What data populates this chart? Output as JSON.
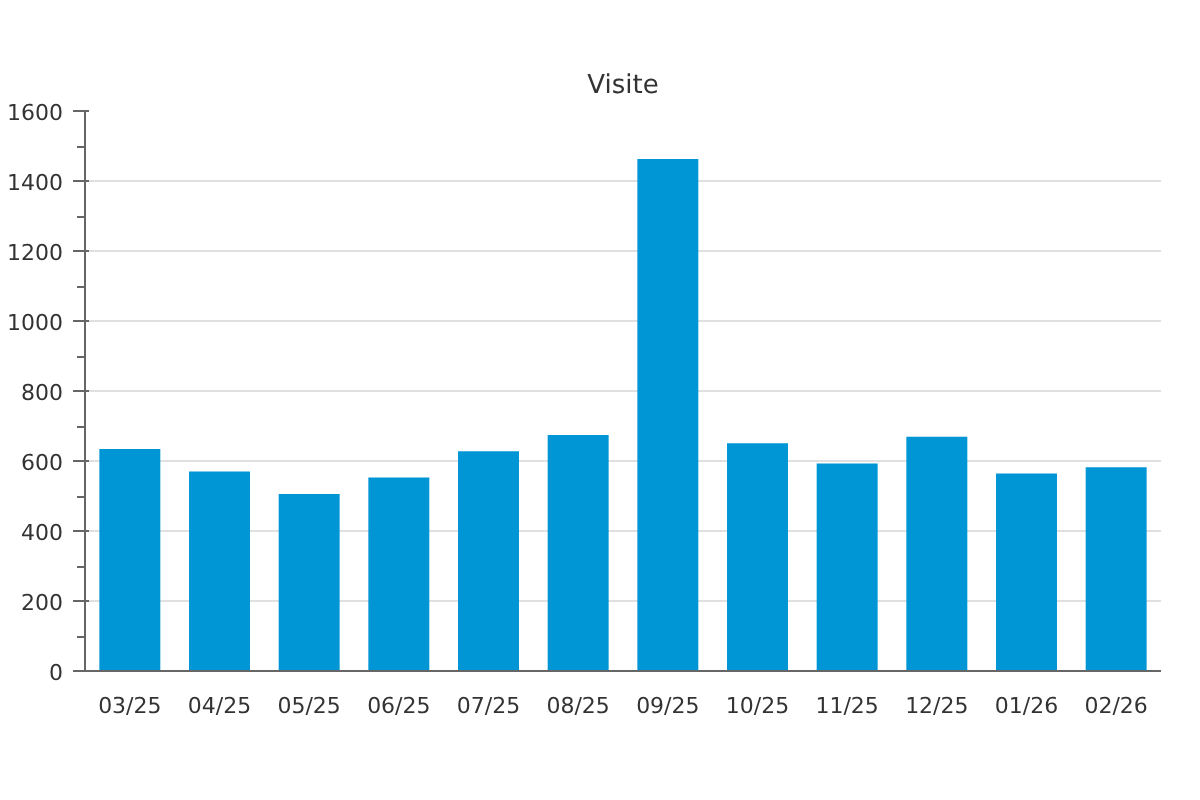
{
  "chart_data": {
    "type": "bar",
    "title": "Visite",
    "categories": [
      "03/25",
      "04/25",
      "05/25",
      "06/25",
      "07/25",
      "08/25",
      "09/25",
      "10/25",
      "11/25",
      "12/25",
      "01/26",
      "02/26"
    ],
    "values": [
      634,
      570,
      506,
      553,
      628,
      674,
      1463,
      651,
      593,
      669,
      564,
      582
    ],
    "color": "#0096d6",
    "ylim": [
      0,
      1600
    ],
    "yticks": [
      0,
      200,
      400,
      600,
      800,
      1000,
      1200,
      1400,
      1600
    ],
    "grid": "y"
  }
}
